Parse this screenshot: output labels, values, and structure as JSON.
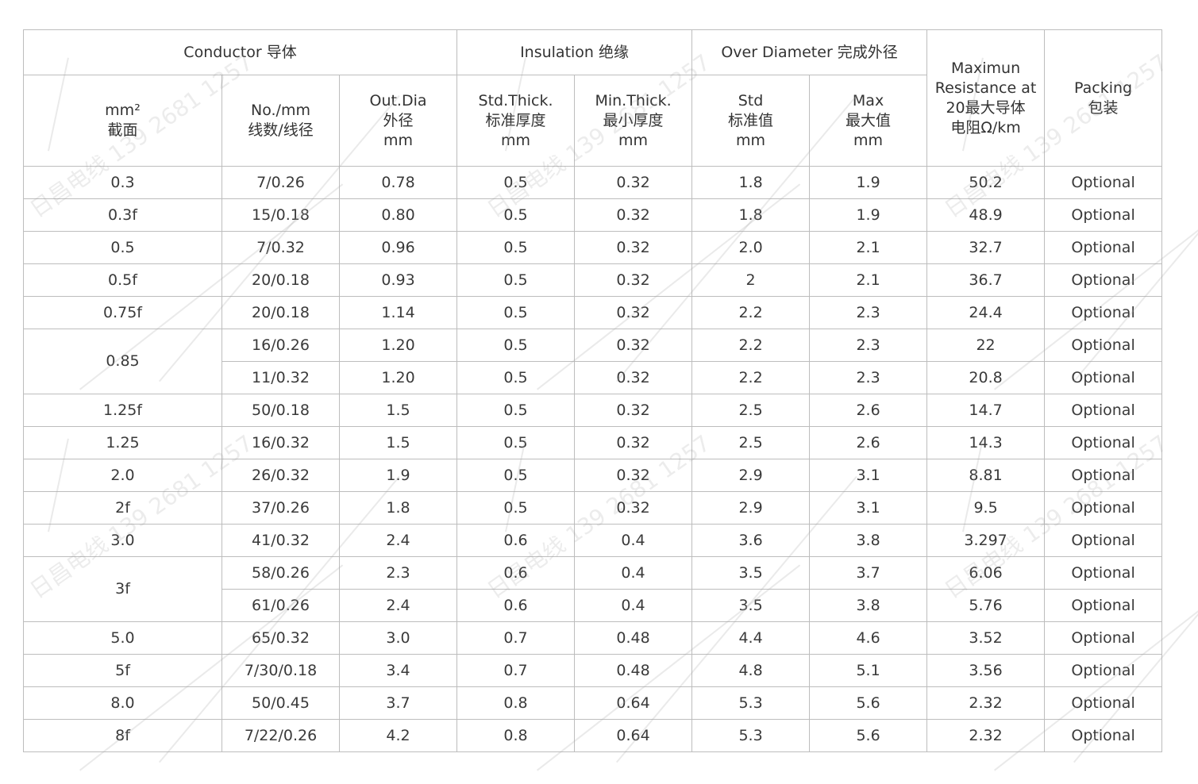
{
  "watermark": "日昌电线 139 2681 1257",
  "header": {
    "conductor": "Conductor 导体",
    "insulation": "Insulation 绝缘",
    "over_diameter": "Over Diameter 完成外径",
    "resistance": [
      "Maximun",
      "Resistance at",
      "20最大导体",
      "电阻Ω/km"
    ],
    "packing": [
      "Packing",
      "包装"
    ],
    "size": [
      "mm²",
      "截面"
    ],
    "strands": [
      "No./mm",
      "线数/线径"
    ],
    "out_dia": [
      "Out.Dia",
      "外径",
      "mm"
    ],
    "std_thick": [
      "Std.Thick.",
      "标准厚度",
      "mm"
    ],
    "min_thick": [
      "Min.Thick.",
      "最小厚度",
      "mm"
    ],
    "od_std": [
      "Std",
      "标准值",
      "mm"
    ],
    "od_max": [
      "Max",
      "最大值",
      "mm"
    ]
  },
  "groups": [
    {
      "size": "0.3",
      "rows": [
        [
          "7/0.26",
          "0.78",
          "0.5",
          "0.32",
          "1.8",
          "1.9",
          "50.2",
          "Optional"
        ]
      ]
    },
    {
      "size": "0.3f",
      "rows": [
        [
          "15/0.18",
          "0.80",
          "0.5",
          "0.32",
          "1.8",
          "1.9",
          "48.9",
          "Optional"
        ]
      ]
    },
    {
      "size": "0.5",
      "rows": [
        [
          "7/0.32",
          "0.96",
          "0.5",
          "0.32",
          "2.0",
          "2.1",
          "32.7",
          "Optional"
        ]
      ]
    },
    {
      "size": "0.5f",
      "rows": [
        [
          "20/0.18",
          "0.93",
          "0.5",
          "0.32",
          "2",
          "2.1",
          "36.7",
          "Optional"
        ]
      ]
    },
    {
      "size": "0.75f",
      "rows": [
        [
          "20/0.18",
          "1.14",
          "0.5",
          "0.32",
          "2.2",
          "2.3",
          "24.4",
          "Optional"
        ]
      ]
    },
    {
      "size": "0.85",
      "rows": [
        [
          "16/0.26",
          "1.20",
          "0.5",
          "0.32",
          "2.2",
          "2.3",
          "22",
          "Optional"
        ],
        [
          "11/0.32",
          "1.20",
          "0.5",
          "0.32",
          "2.2",
          "2.3",
          "20.8",
          "Optional"
        ]
      ]
    },
    {
      "size": "1.25f",
      "rows": [
        [
          "50/0.18",
          "1.5",
          "0.5",
          "0.32",
          "2.5",
          "2.6",
          "14.7",
          "Optional"
        ]
      ]
    },
    {
      "size": "1.25",
      "rows": [
        [
          "16/0.32",
          "1.5",
          "0.5",
          "0.32",
          "2.5",
          "2.6",
          "14.3",
          "Optional"
        ]
      ]
    },
    {
      "size": "2.0",
      "rows": [
        [
          "26/0.32",
          "1.9",
          "0.5",
          "0.32",
          "2.9",
          "3.1",
          "8.81",
          "Optional"
        ]
      ]
    },
    {
      "size": "2f",
      "rows": [
        [
          "37/0.26",
          "1.8",
          "0.5",
          "0.32",
          "2.9",
          "3.1",
          "9.5",
          "Optional"
        ]
      ]
    },
    {
      "size": "3.0",
      "rows": [
        [
          "41/0.32",
          "2.4",
          "0.6",
          "0.4",
          "3.6",
          "3.8",
          "3.297",
          "Optional"
        ]
      ]
    },
    {
      "size": "3f",
      "rows": [
        [
          "58/0.26",
          "2.3",
          "0.6",
          "0.4",
          "3.5",
          "3.7",
          "6.06",
          "Optional"
        ],
        [
          "61/0.26",
          "2.4",
          "0.6",
          "0.4",
          "3.5",
          "3.8",
          "5.76",
          "Optional"
        ]
      ]
    },
    {
      "size": "5.0",
      "rows": [
        [
          "65/0.32",
          "3.0",
          "0.7",
          "0.48",
          "4.4",
          "4.6",
          "3.52",
          "Optional"
        ]
      ]
    },
    {
      "size": "5f",
      "rows": [
        [
          "7/30/0.18",
          "3.4",
          "0.7",
          "0.48",
          "4.8",
          "5.1",
          "3.56",
          "Optional"
        ]
      ]
    },
    {
      "size": "8.0",
      "rows": [
        [
          "50/0.45",
          "3.7",
          "0.8",
          "0.64",
          "5.3",
          "5.6",
          "2.32",
          "Optional"
        ]
      ]
    },
    {
      "size": "8f",
      "rows": [
        [
          "7/22/0.26",
          "4.2",
          "0.8",
          "0.64",
          "5.3",
          "5.6",
          "2.32",
          "Optional"
        ]
      ]
    }
  ]
}
